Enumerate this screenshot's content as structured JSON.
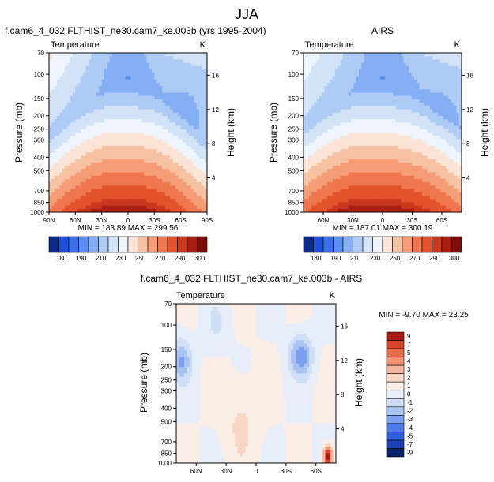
{
  "page_title": "JJA",
  "colors": {
    "main_palette": [
      "#0a2a8c",
      "#1f4fd8",
      "#3a6fe8",
      "#5a8ef0",
      "#85aef4",
      "#aecbf6",
      "#d2e3f8",
      "#eef4fb",
      "#fbe3d6",
      "#f7c2a4",
      "#f59d77",
      "#ef764e",
      "#e2532c",
      "#c8381c",
      "#a81f12",
      "#7a0d08"
    ],
    "diff_palette": [
      "#07216a",
      "#1c3fb3",
      "#2f5de0",
      "#4d7be8",
      "#7aa0ee",
      "#a9c4f3",
      "#cfdff7",
      "#e7eef9",
      "#fbeee6",
      "#f7d6c5",
      "#f3b69c",
      "#ee9271",
      "#e86a47",
      "#d5452a",
      "#a41c12"
    ]
  },
  "chart_data": [
    {
      "id": "model",
      "type": "heatmap",
      "title": "f.cam6_4_032.FLTHIST_ne30.cam7_ke.003b (yrs 1995-2004)",
      "left_label": "Temperature",
      "units": "K",
      "ylabel": "Pressure (mb)",
      "ylabel_right": "Height (km)",
      "y_ticks": [
        70,
        100,
        150,
        200,
        250,
        300,
        400,
        500,
        700,
        850,
        1000
      ],
      "y_tick_labels": [
        "70",
        "100",
        "150",
        "200",
        "250",
        "300",
        "400",
        "500",
        "700",
        "850",
        "1000"
      ],
      "x_ticks": [
        90,
        60,
        30,
        0,
        -30,
        -60,
        -90
      ],
      "x_tick_labels": [
        "90N",
        "60N",
        "30N",
        "0",
        "30S",
        "60S",
        "90S"
      ],
      "height_ticks": [
        16,
        12,
        8,
        4
      ],
      "height_tick_labels": [
        "16",
        "12",
        "8",
        "4"
      ],
      "stats_text": "MIN = 183.89  MAX = 299.56",
      "min": 183.89,
      "max": 299.56,
      "levels": [
        180,
        185,
        190,
        200,
        210,
        220,
        230,
        240,
        250,
        260,
        270,
        280,
        290,
        295,
        300
      ],
      "colorbar_labels": [
        "180",
        "190",
        "210",
        "230",
        "250",
        "270",
        "290",
        "300"
      ]
    },
    {
      "id": "obs",
      "type": "heatmap",
      "title": "AIRS",
      "left_label": "Temperature",
      "units": "K",
      "ylabel": "Pressure (mb)",
      "ylabel_right": "Height (km)",
      "y_ticks": [
        70,
        100,
        150,
        200,
        250,
        300,
        400,
        500,
        700,
        850,
        1000
      ],
      "y_tick_labels": [
        "70",
        "100",
        "150",
        "200",
        "250",
        "300",
        "400",
        "500",
        "700",
        "850",
        "1000"
      ],
      "x_ticks": [
        60,
        30,
        0,
        -30,
        -60
      ],
      "x_tick_labels": [
        "60N",
        "30N",
        "0",
        "30S",
        "60S"
      ],
      "height_ticks": [
        16,
        12,
        8,
        4
      ],
      "height_tick_labels": [
        "16",
        "12",
        "8",
        "4"
      ],
      "stats_text": "MIN = 187.01  MAX = 300.19",
      "min": 187.01,
      "max": 300.19,
      "levels": [
        180,
        185,
        190,
        200,
        210,
        220,
        230,
        240,
        250,
        260,
        270,
        280,
        290,
        295,
        300
      ],
      "colorbar_labels": [
        "180",
        "190",
        "210",
        "230",
        "250",
        "270",
        "290",
        "300"
      ]
    },
    {
      "id": "diff",
      "type": "heatmap",
      "title": "f.cam6_4_032.FLTHIST_ne30.cam7_ke.003b - AIRS",
      "left_label": "Temperature",
      "units": "K",
      "ylabel": "Pressure (mb)",
      "ylabel_right": "Height (km)",
      "y_ticks": [
        70,
        100,
        150,
        200,
        250,
        300,
        400,
        500,
        700,
        850,
        1000
      ],
      "y_tick_labels": [
        "70",
        "100",
        "150",
        "200",
        "250",
        "300",
        "400",
        "500",
        "700",
        "850",
        "1000"
      ],
      "x_ticks": [
        60,
        30,
        0,
        -30,
        -60
      ],
      "x_tick_labels": [
        "60N",
        "30N",
        "0",
        "30S",
        "60S"
      ],
      "height_ticks": [
        16,
        12,
        8,
        4
      ],
      "height_tick_labels": [
        "16",
        "12",
        "8",
        "4"
      ],
      "stats_text": "MIN = -9.70  MAX = 23.25",
      "min": -9.7,
      "max": 23.25,
      "levels": [
        -9,
        -7,
        -5,
        -4,
        -3,
        -2,
        -1,
        0,
        1,
        2,
        3,
        4,
        5,
        7,
        9
      ],
      "colorbar_labels": [
        "9",
        "7",
        "5",
        "4",
        "3",
        "2",
        "1",
        "0",
        "-1",
        "-2",
        "-3",
        "-4",
        "-5",
        "-7",
        "-9"
      ]
    }
  ]
}
